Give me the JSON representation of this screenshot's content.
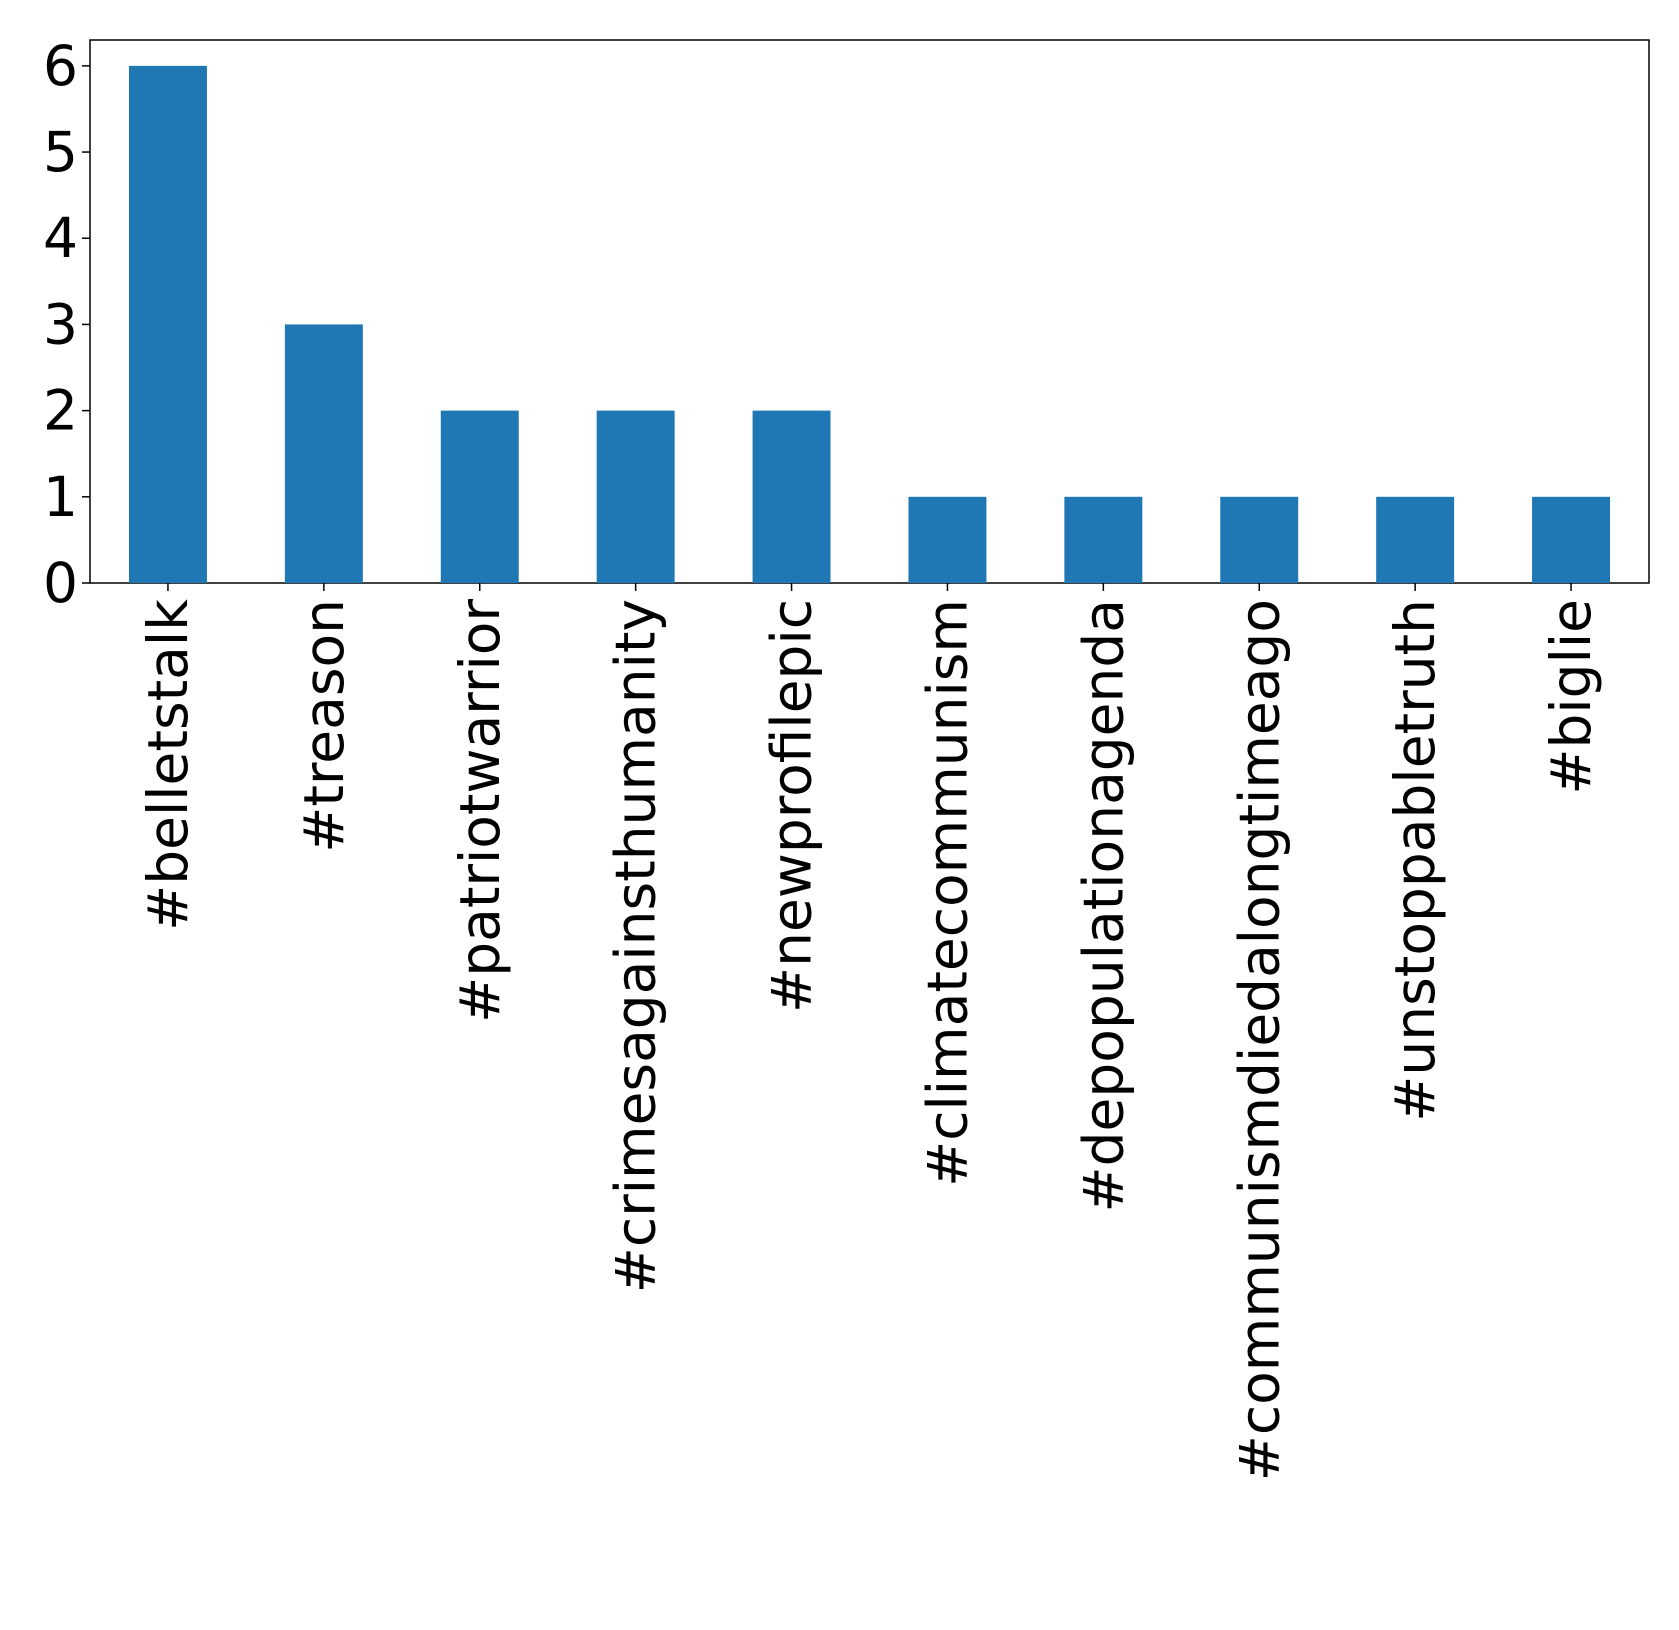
{
  "chart_data": {
    "type": "bar",
    "title": "",
    "xlabel": "",
    "ylabel": "",
    "categories": [
      "#belletstalk",
      "#treason",
      "#patriotwarrior",
      "#crimesagainsthumanity",
      "#newprofilepic",
      "#climatecommunism",
      "#depopulationagenda",
      "#communismdiedalongtimeago",
      "#unstoppabletruth",
      "#biglie"
    ],
    "values": [
      6,
      3,
      2,
      2,
      2,
      1,
      1,
      1,
      1,
      1
    ],
    "ylim": [
      0,
      6.3
    ],
    "yticks": [
      "0",
      "1",
      "2",
      "3",
      "4",
      "5",
      "6"
    ],
    "grid": false,
    "legend": "none",
    "colors": {
      "bar": "#1f77b4",
      "axes": "#000000",
      "background": "#ffffff"
    }
  }
}
